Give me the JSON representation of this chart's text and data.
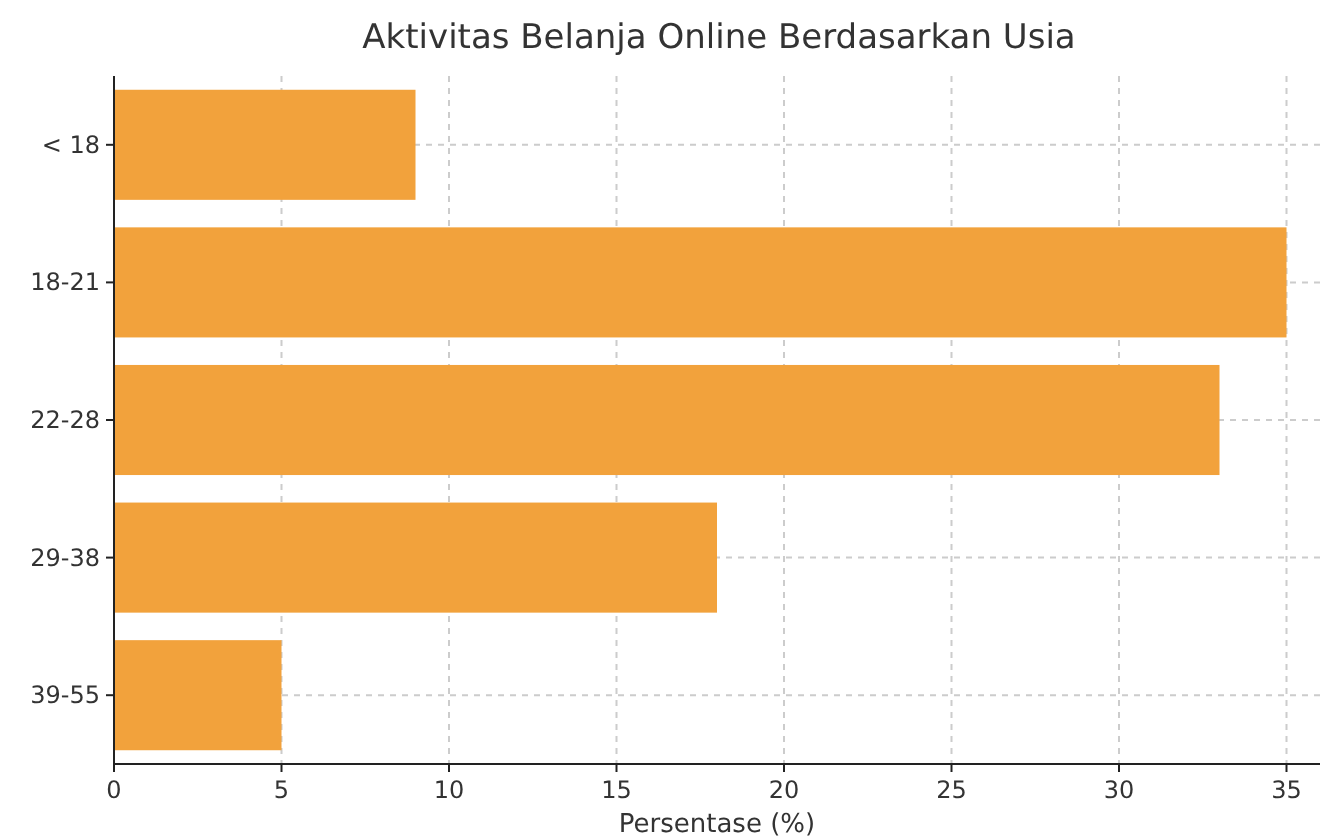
{
  "chart_data": {
    "type": "bar",
    "orientation": "horizontal",
    "title": "Aktivitas Belanja Online Berdasarkan Usia",
    "xlabel": "Persentase (%)",
    "categories": [
      "< 18",
      "18-21",
      "22-28",
      "29-38",
      "39-55"
    ],
    "values": [
      9,
      35,
      33,
      18,
      5
    ],
    "color": "#f2a23c",
    "xlim": [
      0,
      36
    ],
    "xticks": [
      0,
      5,
      10,
      15,
      20,
      25,
      30,
      35
    ],
    "grid": true
  }
}
